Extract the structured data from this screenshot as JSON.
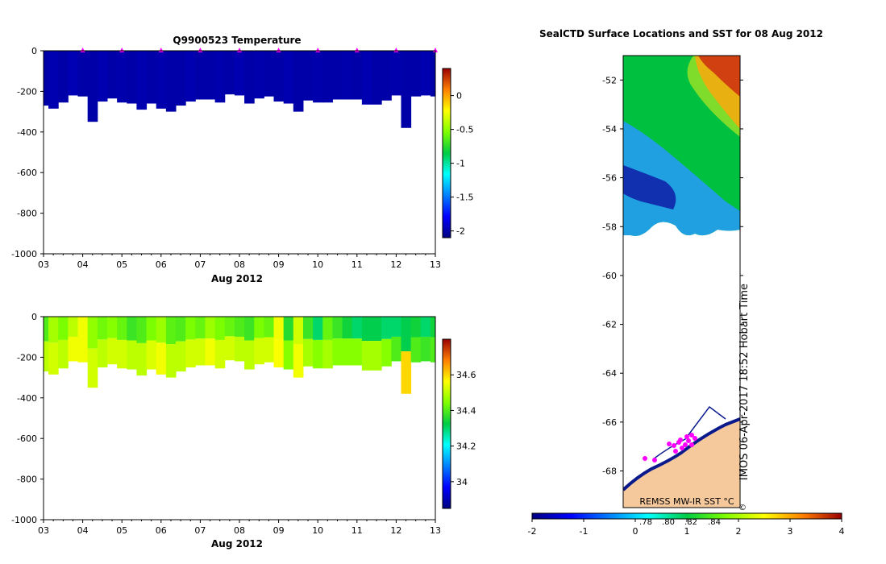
{
  "colors": {
    "background": "#ffffff",
    "temp_fill": "#0a1a8c",
    "marker": "#ff00ff",
    "land": "#f6c99d",
    "coast": "#0a1a8c"
  },
  "chart_data": [
    {
      "type": "heatmap",
      "id": "temperature",
      "title": "Q9900523  Temperature",
      "xlabel": "Aug 2012",
      "xticks": [
        "03",
        "04",
        "05",
        "06",
        "07",
        "08",
        "09",
        "10",
        "11",
        "12",
        "13"
      ],
      "xlim": [
        3,
        13
      ],
      "ylim": [
        -1000,
        0
      ],
      "yticks": [
        0,
        -200,
        -400,
        -600,
        -800,
        -1000
      ],
      "profile_times": [
        3.0,
        3.25,
        3.5,
        3.75,
        4.0,
        4.25,
        4.5,
        4.75,
        5.0,
        5.25,
        5.5,
        5.75,
        6.0,
        6.25,
        6.5,
        6.75,
        7.0,
        7.25,
        7.5,
        7.75,
        8.0,
        8.25,
        8.5,
        8.75,
        9.0,
        9.25,
        9.5,
        9.75,
        10.0,
        10.25,
        10.5,
        10.75,
        11.0,
        11.25,
        11.5,
        11.75,
        12.0,
        12.25,
        12.5,
        12.75,
        13.0
      ],
      "profile_depths": [
        270,
        285,
        255,
        220,
        225,
        350,
        250,
        235,
        255,
        260,
        290,
        260,
        285,
        300,
        270,
        250,
        240,
        240,
        255,
        215,
        220,
        260,
        235,
        225,
        250,
        260,
        300,
        245,
        255,
        255,
        240,
        240,
        240,
        265,
        265,
        245,
        220,
        380,
        225,
        220,
        225
      ],
      "profile_values": [
        -2.0,
        -1.98,
        -2.0,
        -1.97,
        -2.0,
        -2.0,
        -1.98,
        -2.0,
        -1.99,
        -2.0,
        -1.98,
        -2.0,
        -1.99,
        -2.0,
        -2.0,
        -1.98,
        -2.0,
        -2.0,
        -1.99,
        -2.0,
        -1.98,
        -2.0,
        -1.99,
        -2.0,
        -2.0,
        -1.98,
        -2.0,
        -2.0,
        -1.99,
        -2.0,
        -2.0,
        -1.99,
        -2.0,
        -1.98,
        -2.0,
        -2.0,
        -1.99,
        -2.0,
        -2.0,
        -1.98,
        -2.0
      ],
      "markers_at": [
        4,
        5,
        6,
        7,
        8,
        9,
        10,
        11,
        12,
        13
      ],
      "colorbar": {
        "min": -2.1,
        "max": 0.4,
        "ticks": [
          0,
          -0.5,
          -1,
          -1.5,
          -2
        ]
      }
    },
    {
      "type": "heatmap",
      "id": "salinity",
      "title": "",
      "xlabel": "Aug 2012",
      "xticks": [
        "03",
        "04",
        "05",
        "06",
        "07",
        "08",
        "09",
        "10",
        "11",
        "12",
        "13"
      ],
      "xlim": [
        3,
        13
      ],
      "ylim": [
        -1000,
        0
      ],
      "yticks": [
        0,
        -200,
        -400,
        -600,
        -800,
        -1000
      ],
      "profile_times": [
        3.0,
        3.25,
        3.5,
        3.75,
        4.0,
        4.25,
        4.5,
        4.75,
        5.0,
        5.25,
        5.5,
        5.75,
        6.0,
        6.25,
        6.5,
        6.75,
        7.0,
        7.25,
        7.5,
        7.75,
        8.0,
        8.25,
        8.5,
        8.75,
        9.0,
        9.25,
        9.5,
        9.75,
        10.0,
        10.25,
        10.5,
        10.75,
        11.0,
        11.25,
        11.5,
        11.75,
        12.0,
        12.25,
        12.5,
        12.75,
        13.0
      ],
      "profile_depths": [
        270,
        285,
        255,
        220,
        225,
        350,
        250,
        235,
        255,
        260,
        290,
        260,
        285,
        300,
        270,
        250,
        240,
        240,
        255,
        215,
        220,
        260,
        235,
        225,
        250,
        260,
        300,
        245,
        255,
        255,
        240,
        240,
        240,
        265,
        265,
        245,
        220,
        380,
        225,
        220,
        225
      ],
      "surface_values": [
        34.4,
        34.48,
        34.44,
        34.5,
        34.55,
        34.46,
        34.43,
        34.45,
        34.42,
        34.38,
        34.4,
        34.44,
        34.47,
        34.41,
        34.4,
        34.44,
        34.42,
        34.47,
        34.44,
        34.42,
        34.4,
        34.38,
        34.44,
        34.42,
        34.55,
        34.36,
        34.52,
        34.38,
        34.3,
        34.42,
        34.38,
        34.34,
        34.3,
        34.32,
        34.32,
        34.3,
        34.3,
        34.32,
        34.34,
        34.3,
        34.34
      ],
      "deep_values": [
        34.5,
        34.52,
        34.5,
        34.55,
        34.55,
        34.52,
        34.5,
        34.52,
        34.52,
        34.5,
        34.5,
        34.53,
        34.55,
        34.5,
        34.5,
        34.52,
        34.52,
        34.55,
        34.52,
        34.52,
        34.5,
        34.5,
        34.52,
        34.52,
        34.56,
        34.45,
        34.55,
        34.48,
        34.45,
        34.48,
        34.45,
        34.45,
        34.45,
        34.48,
        34.48,
        34.45,
        34.4,
        34.6,
        34.4,
        34.38,
        34.4
      ],
      "colorbar": {
        "min": 33.85,
        "max": 34.8,
        "ticks": [
          34.6,
          34.4,
          34.2,
          34
        ]
      }
    },
    {
      "type": "heatmap",
      "id": "sst-map",
      "title": "SealCTD Surface Locations and SST for 08 Aug 2012",
      "ylabel": "",
      "ylim": [
        -69.5,
        -51
      ],
      "yticks": [
        -52,
        -54,
        -56,
        -58,
        -60,
        -62,
        -64,
        -66,
        -68
      ],
      "side_label": "IMOS 06-Apr-2017 18:52 Hobart Time",
      "sst_label": "REMSS MW-IR SST °C",
      "colorbar": {
        "min": -2,
        "max": 4,
        "ticks": [
          -2,
          -1,
          0,
          1,
          2,
          3,
          4
        ],
        "minor_labels": [
          ".78",
          ".80",
          ".82",
          ".84"
        ]
      }
    }
  ]
}
